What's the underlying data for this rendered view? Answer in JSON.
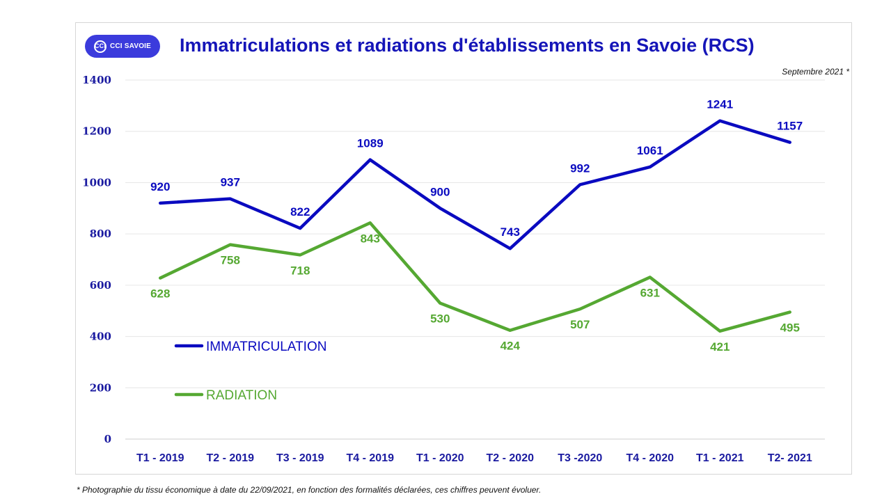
{
  "logo": {
    "mark": "CCi",
    "text": "CCI SAVOIE"
  },
  "header": {
    "title": "Immatriculations et radiations d'établissements en Savoie (RCS)",
    "subtitle": "Septembre 2021  *"
  },
  "footnote": "* Photographie  du tissu économique à date du 22/09/2021,  en fonction des formalités déclarées, ces chiffres peuvent évoluer.",
  "colors": {
    "immatriculation": "#0a0ac0",
    "radiation": "#55a832",
    "axis": "#1a1aa0",
    "grid": "#e6e6e6"
  },
  "chart_data": {
    "type": "line",
    "title": "Immatriculations et radiations d'établissements en Savoie (RCS)",
    "categories": [
      "T1 - 2019",
      "T2 - 2019",
      "T3 - 2019",
      "T4 - 2019",
      "T1 - 2020",
      "T2 - 2020",
      "T3 -2020",
      "T4 - 2020",
      "T1 - 2021",
      "T2- 2021"
    ],
    "ylim": [
      0,
      1400
    ],
    "yticks": [
      0,
      200,
      400,
      600,
      800,
      1000,
      1200,
      1400
    ],
    "grid": true,
    "legend_position": "left, inside plot",
    "series": [
      {
        "name": "IMMATRICULATION",
        "values": [
          920,
          937,
          822,
          1089,
          900,
          743,
          992,
          1061,
          1241,
          1157
        ],
        "label_side": "above"
      },
      {
        "name": "RADIATION",
        "values": [
          628,
          758,
          718,
          843,
          530,
          424,
          507,
          631,
          421,
          495
        ],
        "label_side": "below"
      }
    ]
  }
}
